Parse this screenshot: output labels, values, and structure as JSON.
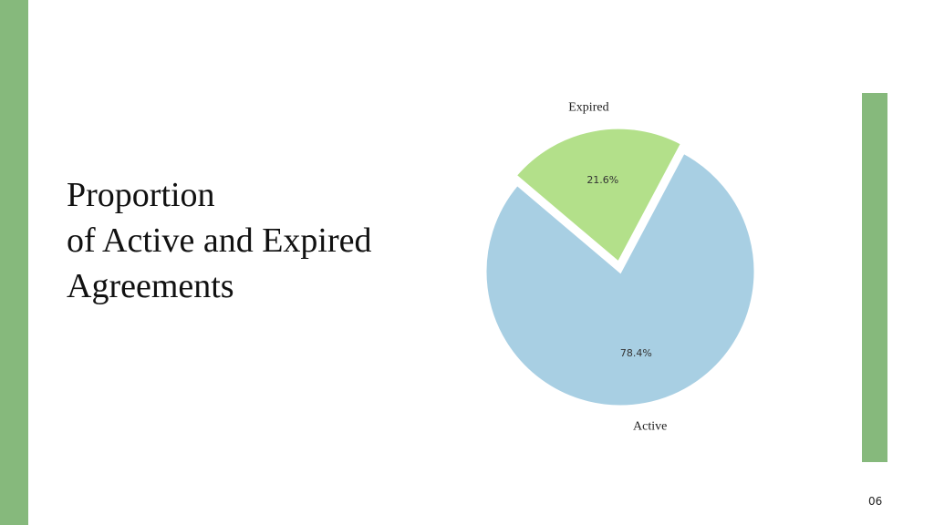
{
  "slide": {
    "title_lines": [
      "Proportion",
      "of Active and Expired",
      "Agreements"
    ],
    "page_number": "06"
  },
  "chart_data": {
    "type": "pie",
    "categories": [
      "Active",
      "Expired"
    ],
    "values": [
      78.4,
      21.6
    ],
    "value_labels": [
      "78.4%",
      "21.6%"
    ],
    "colors": [
      "#a8cfe3",
      "#b3e08a"
    ]
  }
}
